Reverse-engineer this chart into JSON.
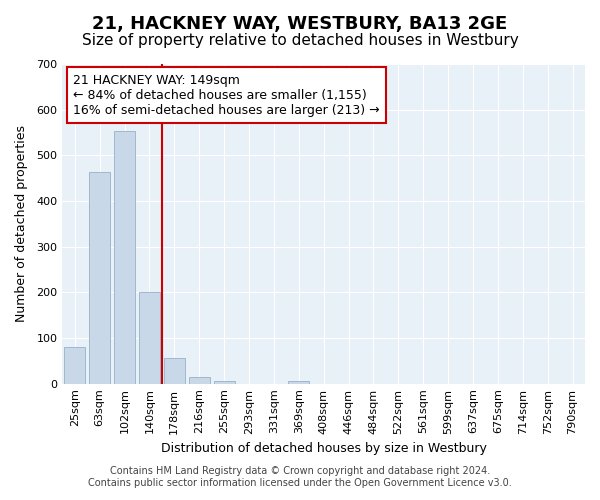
{
  "title": "21, HACKNEY WAY, WESTBURY, BA13 2GE",
  "subtitle": "Size of property relative to detached houses in Westbury",
  "xlabel": "Distribution of detached houses by size in Westbury",
  "ylabel": "Number of detached properties",
  "bar_labels": [
    "25sqm",
    "63sqm",
    "102sqm",
    "140sqm",
    "178sqm",
    "216sqm",
    "255sqm",
    "293sqm",
    "331sqm",
    "369sqm",
    "408sqm",
    "446sqm",
    "484sqm",
    "522sqm",
    "561sqm",
    "599sqm",
    "637sqm",
    "675sqm",
    "714sqm",
    "752sqm",
    "790sqm"
  ],
  "bar_values": [
    80,
    463,
    553,
    201,
    57,
    15,
    5,
    0,
    0,
    5,
    0,
    0,
    0,
    0,
    0,
    0,
    0,
    0,
    0,
    0,
    0
  ],
  "bar_color": "#c8d8e8",
  "bar_edge_color": "#a0b8cc",
  "property_line_x": 3.5,
  "property_line_color": "#cc0000",
  "annotation_title": "21 HACKNEY WAY: 149sqm",
  "annotation_line1": "← 84% of detached houses are smaller (1,155)",
  "annotation_line2": "16% of semi-detached houses are larger (213) →",
  "annotation_box_color": "#ffffff",
  "annotation_box_edge_color": "#cc0000",
  "ylim": [
    0,
    700
  ],
  "yticks": [
    0,
    100,
    200,
    300,
    400,
    500,
    600,
    700
  ],
  "background_color": "#ffffff",
  "plot_bg_color": "#e8f0f8",
  "footer_line1": "Contains HM Land Registry data © Crown copyright and database right 2024.",
  "footer_line2": "Contains public sector information licensed under the Open Government Licence v3.0.",
  "title_fontsize": 13,
  "subtitle_fontsize": 11,
  "axis_label_fontsize": 9,
  "tick_fontsize": 8,
  "annotation_fontsize": 9,
  "footer_fontsize": 7
}
